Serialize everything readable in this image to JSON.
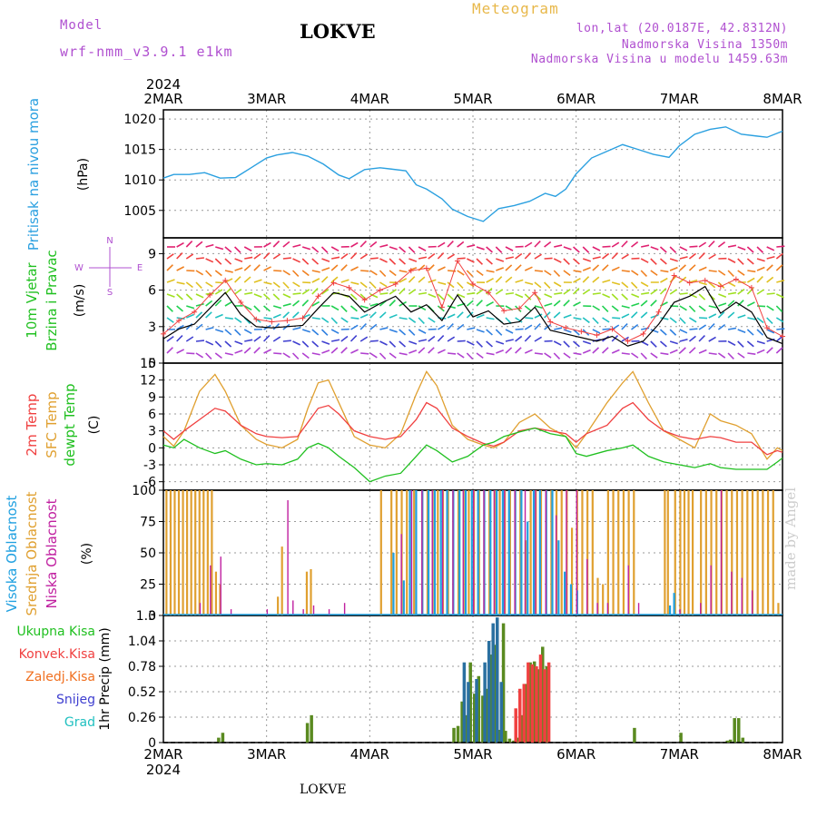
{
  "header": {
    "model_label": "Model",
    "model_name": "wrf-nmm_v3.9.1  e1km",
    "title": "LOKVE",
    "meteogram_label": "Meteogram",
    "lonlat": "lon,lat (20.0187E, 42.8312N)",
    "altitude": "Nadmorska Visina 1350m",
    "model_altitude": "Nadmorska Visina u modelu 1459.63m"
  },
  "footer": {
    "station": "LOKVE",
    "credit": "made by Angel"
  },
  "colors": {
    "pressure": "#2ba0e0",
    "temp2m": "#f04040",
    "sfc": "#e0a030",
    "dewpt": "#20c020",
    "high_cloud": "#20a0e0",
    "mid_cloud": "#e0a030",
    "low_cloud": "#c020a0",
    "rain": "#20c020",
    "conv": "#f04040",
    "frozen": "#f07020",
    "snow": "#4040d0",
    "hail": "#20c0c0",
    "wind_line": "#000000",
    "gust": "#f04040",
    "compass": "#b050d0"
  },
  "chart_data": [
    {
      "type": "line",
      "id": "pressure",
      "ylabel_lines": [
        "Pritisak na nivou mora"
      ],
      "unit": "(hPa)",
      "year": "2024",
      "date_ticks": [
        "2MAR",
        "3MAR",
        "4MAR",
        "5MAR",
        "6MAR",
        "7MAR",
        "8MAR"
      ],
      "ylim": [
        1000.5,
        1021.5
      ],
      "yticks": [
        1005,
        1010,
        1015,
        1020
      ],
      "x": [
        0,
        0.1,
        0.25,
        0.4,
        0.55,
        0.7,
        0.85,
        1.0,
        1.1,
        1.25,
        1.4,
        1.55,
        1.7,
        1.8,
        1.95,
        2.1,
        2.2,
        2.35,
        2.45,
        2.55,
        2.7,
        2.8,
        2.95,
        3.1,
        3.25,
        3.4,
        3.55,
        3.7,
        3.8,
        3.9,
        4.0,
        4.15,
        4.3,
        4.45,
        4.6,
        4.75,
        4.9,
        5.0,
        5.15,
        5.3,
        5.45,
        5.6,
        5.75,
        5.85,
        6.0
      ],
      "series": [
        {
          "values": [
            1010.3,
            1010.9,
            1010.9,
            1011.2,
            1010.3,
            1010.4,
            1012.0,
            1013.6,
            1014.1,
            1014.5,
            1013.9,
            1012.6,
            1010.8,
            1010.2,
            1011.7,
            1012.0,
            1011.8,
            1011.5,
            1009.2,
            1008.5,
            1006.9,
            1005.2,
            1004.0,
            1003.2,
            1005.3,
            1005.8,
            1006.5,
            1007.8,
            1007.3,
            1008.5,
            1011.0,
            1013.6,
            1014.7,
            1015.8,
            1015.0,
            1014.2,
            1013.7,
            1015.6,
            1017.5,
            1018.3,
            1018.7,
            1017.5,
            1017.2,
            1017.0,
            1018.0
          ]
        }
      ]
    },
    {
      "type": "line",
      "id": "wind",
      "ylabel_lines": [
        "10m Vjetar",
        "Brzina i Pravac"
      ],
      "unit": "(m/s)",
      "compass": {
        "n": "N",
        "s": "S",
        "w": "W",
        "e": "E"
      },
      "ylim": [
        0,
        10.3
      ],
      "yticks": [
        0,
        3,
        6,
        9
      ],
      "x": [
        0,
        0.15,
        0.3,
        0.45,
        0.6,
        0.75,
        0.9,
        1.05,
        1.2,
        1.35,
        1.5,
        1.65,
        1.8,
        1.95,
        2.1,
        2.25,
        2.4,
        2.55,
        2.7,
        2.85,
        3.0,
        3.15,
        3.3,
        3.45,
        3.6,
        3.75,
        3.9,
        4.05,
        4.2,
        4.35,
        4.5,
        4.65,
        4.8,
        4.95,
        5.1,
        5.25,
        5.4,
        5.55,
        5.7,
        5.85,
        6.0
      ],
      "series": [
        {
          "name": "speed",
          "values": [
            2.0,
            2.8,
            3.2,
            4.5,
            5.8,
            4.0,
            3.0,
            2.9,
            3.0,
            3.1,
            4.5,
            5.8,
            5.5,
            4.2,
            4.9,
            5.5,
            4.2,
            4.8,
            3.5,
            5.6,
            3.8,
            4.3,
            3.2,
            3.4,
            4.6,
            2.7,
            2.4,
            2.1,
            1.8,
            2.2,
            1.4,
            1.8,
            3.2,
            5.0,
            5.5,
            6.3,
            4.1,
            5.0,
            4.2,
            2.1,
            1.6
          ]
        },
        {
          "name": "gust",
          "values": [
            2.4,
            3.5,
            4.2,
            5.6,
            6.8,
            5.0,
            3.6,
            3.4,
            3.5,
            3.7,
            5.5,
            6.6,
            6.2,
            5.2,
            6.0,
            6.5,
            7.6,
            7.8,
            4.6,
            8.4,
            6.5,
            5.8,
            4.3,
            4.5,
            5.8,
            3.4,
            2.9,
            2.6,
            2.3,
            2.8,
            1.8,
            2.4,
            4.2,
            7.2,
            6.6,
            6.8,
            6.3,
            6.9,
            6.2,
            2.9,
            2.2
          ]
        }
      ]
    },
    {
      "type": "line",
      "id": "temperature",
      "ylabel_lines": [
        "2m Temp",
        "SFC Temp",
        "dewpt Temp"
      ],
      "unit": "(C)",
      "ylim": [
        -7.5,
        15
      ],
      "yticks": [
        -6,
        -3,
        0,
        3,
        6,
        9,
        12,
        15
      ],
      "x": [
        0,
        0.1,
        0.2,
        0.35,
        0.5,
        0.6,
        0.75,
        0.9,
        1.0,
        1.15,
        1.3,
        1.4,
        1.5,
        1.6,
        1.7,
        1.85,
        2.0,
        2.15,
        2.3,
        2.45,
        2.55,
        2.65,
        2.8,
        2.95,
        3.1,
        3.2,
        3.3,
        3.45,
        3.6,
        3.75,
        3.9,
        4.0,
        4.1,
        4.3,
        4.45,
        4.55,
        4.7,
        4.85,
        5.0,
        5.15,
        5.3,
        5.4,
        5.55,
        5.7,
        5.85,
        5.95,
        6.0
      ],
      "series": [
        {
          "name": "2m",
          "values": [
            3.0,
            1.5,
            3.0,
            5.0,
            7.0,
            6.5,
            4.0,
            2.5,
            2.0,
            1.8,
            2.0,
            4.5,
            7.0,
            7.5,
            6.0,
            3.0,
            2.0,
            1.5,
            2.0,
            5.0,
            8.0,
            7.0,
            3.5,
            2.0,
            0.8,
            0.3,
            1.0,
            3.0,
            3.5,
            3.0,
            2.5,
            1.0,
            2.5,
            4.0,
            7.0,
            8.0,
            5.0,
            3.0,
            2.0,
            1.5,
            2.0,
            1.8,
            1.0,
            1.0,
            -1.2,
            -0.5,
            -0.8
          ]
        },
        {
          "name": "sfc",
          "values": [
            2.0,
            0.3,
            3.0,
            10.0,
            13.0,
            10.0,
            4.0,
            1.5,
            0.6,
            0.0,
            1.5,
            7.0,
            11.5,
            12.0,
            8.0,
            2.0,
            0.5,
            0.0,
            2.5,
            9.5,
            13.5,
            11.0,
            4.0,
            1.5,
            0.5,
            0.0,
            1.0,
            4.5,
            6.0,
            3.5,
            2.0,
            0.0,
            2.5,
            8.0,
            11.5,
            13.5,
            8.0,
            3.0,
            1.5,
            0.0,
            6.0,
            4.8,
            4.0,
            2.5,
            -2.0,
            0.0,
            -0.5
          ]
        },
        {
          "name": "dewpt",
          "values": [
            0.5,
            0.0,
            1.5,
            0.0,
            -1.0,
            -0.5,
            -2.0,
            -3.0,
            -2.8,
            -3.0,
            -2.0,
            0.0,
            0.8,
            0.0,
            -1.5,
            -3.5,
            -6.0,
            -5.0,
            -4.5,
            -1.5,
            0.5,
            -0.5,
            -2.5,
            -1.5,
            0.5,
            1.0,
            2.0,
            2.8,
            3.5,
            2.5,
            2.0,
            -1.0,
            -1.5,
            -0.5,
            0.0,
            0.5,
            -1.5,
            -2.5,
            -3.0,
            -3.5,
            -2.8,
            -3.5,
            -3.8,
            -3.8,
            -3.8,
            -2.5,
            -1.8
          ]
        }
      ]
    },
    {
      "type": "bar",
      "id": "clouds",
      "ylabel_lines": [
        "Visoka Oblacnost",
        "Srednja Oblacnost",
        "Niska Oblacnost"
      ],
      "unit": "(%)",
      "ylim": [
        0,
        100
      ],
      "yticks": [
        0,
        25,
        50,
        75,
        100
      ],
      "series": [
        {
          "name": "mid",
          "x": [
            0.02,
            0.06,
            0.1,
            0.14,
            0.18,
            0.22,
            0.26,
            0.3,
            0.34,
            0.38,
            0.42,
            0.46,
            0.5,
            0.54,
            1.1,
            1.14,
            1.38,
            1.42,
            2.1,
            2.2,
            2.25,
            2.3,
            2.35,
            2.42,
            2.5,
            2.55,
            2.6,
            2.65,
            2.7,
            2.75,
            2.8,
            2.85,
            2.9,
            2.95,
            3.0,
            3.05,
            3.1,
            3.15,
            3.2,
            3.25,
            3.3,
            3.35,
            3.4,
            3.45,
            3.5,
            3.55,
            3.6,
            3.65,
            3.7,
            3.75,
            3.8,
            3.85,
            3.9,
            3.95,
            4.0,
            4.05,
            4.1,
            4.15,
            4.2,
            4.25,
            4.3,
            4.35,
            4.4,
            4.45,
            4.5,
            4.55,
            4.85,
            4.88,
            4.95,
            5.0,
            5.04,
            5.08,
            5.12,
            5.2,
            5.25,
            5.3,
            5.35,
            5.4,
            5.45,
            5.5,
            5.55,
            5.6,
            5.65,
            5.7,
            5.75,
            5.8,
            5.85,
            5.9,
            5.95
          ],
          "values": [
            100,
            100,
            100,
            100,
            100,
            100,
            100,
            100,
            100,
            100,
            100,
            100,
            35,
            25,
            15,
            55,
            35,
            37,
            100,
            100,
            100,
            100,
            100,
            100,
            100,
            100,
            100,
            100,
            100,
            100,
            100,
            100,
            100,
            100,
            100,
            100,
            100,
            100,
            100,
            100,
            100,
            100,
            100,
            100,
            60,
            100,
            100,
            100,
            100,
            100,
            100,
            100,
            100,
            70,
            100,
            100,
            100,
            100,
            30,
            25,
            100,
            100,
            100,
            100,
            100,
            100,
            100,
            100,
            100,
            100,
            100,
            100,
            100,
            100,
            100,
            100,
            100,
            100,
            100,
            100,
            100,
            100,
            100,
            100,
            100,
            100,
            100,
            100,
            10
          ]
        },
        {
          "name": "high",
          "x": [
            2.22,
            2.32,
            2.38,
            2.44,
            2.5,
            2.56,
            2.62,
            2.68,
            2.74,
            2.8,
            2.86,
            2.92,
            2.98,
            3.04,
            3.1,
            3.16,
            3.22,
            3.28,
            3.34,
            3.4,
            3.46,
            3.52,
            3.58,
            3.64,
            3.7,
            3.76,
            3.82,
            3.88,
            3.94,
            4.0,
            4.9,
            4.94
          ],
          "values": [
            50,
            28,
            100,
            100,
            100,
            100,
            100,
            100,
            100,
            100,
            100,
            100,
            100,
            100,
            100,
            100,
            100,
            100,
            100,
            100,
            100,
            75,
            100,
            100,
            100,
            100,
            60,
            35,
            25,
            20,
            8,
            18
          ]
        },
        {
          "name": "low",
          "x": [
            0.35,
            0.45,
            0.55,
            0.65,
            1.0,
            1.2,
            1.25,
            1.35,
            1.45,
            1.6,
            1.75,
            2.3,
            2.4,
            2.5,
            2.6,
            2.7,
            2.8,
            2.9,
            3.0,
            3.1,
            3.2,
            3.3,
            3.4,
            3.5,
            3.6,
            3.7,
            3.8,
            3.9,
            4.0,
            4.1,
            4.2,
            4.3,
            4.5,
            4.6,
            5.0,
            5.2,
            5.3,
            5.4,
            5.5,
            5.6,
            5.7
          ],
          "values": [
            10,
            40,
            47,
            5,
            5,
            92,
            12,
            5,
            8,
            5,
            10,
            65,
            100,
            100,
            100,
            100,
            100,
            100,
            100,
            100,
            100,
            100,
            100,
            100,
            100,
            100,
            80,
            100,
            100,
            45,
            10,
            10,
            40,
            10,
            5,
            10,
            40,
            100,
            35,
            30,
            20
          ]
        }
      ]
    },
    {
      "type": "bar",
      "id": "precipitation",
      "ylabel_lines": [
        "Ukupna Kisa",
        "Konvek.Kisa",
        "Zaledj.Kisa",
        "Snijeg",
        "Grad"
      ],
      "unit": "1hr Precip (mm)",
      "ylim": [
        0,
        1.3
      ],
      "yticks": [
        0,
        0.26,
        0.52,
        0.78,
        1.04,
        1.3
      ],
      "series": [
        {
          "name": "rain",
          "x": [
            0.52,
            0.56,
            1.38,
            1.42,
            2.8,
            2.84,
            2.88,
            2.92,
            2.96,
            3.0,
            3.04,
            3.08,
            3.12,
            3.16,
            3.2,
            3.24,
            3.28,
            3.3,
            3.34,
            3.38,
            3.42,
            3.46,
            3.5,
            3.54,
            3.58,
            3.62,
            3.66,
            3.7,
            4.55,
            5.0,
            5.45,
            5.48,
            5.52,
            5.56,
            5.6
          ],
          "values": [
            0.05,
            0.1,
            0.2,
            0.28,
            0.15,
            0.17,
            0.42,
            0.28,
            0.82,
            0.5,
            0.68,
            0.48,
            0.55,
            0.9,
            1.0,
            0.13,
            1.22,
            0.12,
            0.04,
            0.02,
            0.05,
            0.28,
            0.6,
            0.82,
            0.83,
            0.75,
            0.98,
            0.78,
            0.15,
            0.1,
            0.02,
            0.03,
            0.25,
            0.25,
            0.05
          ]
        },
        {
          "name": "conv",
          "x": [
            3.4,
            3.44,
            3.48,
            3.52,
            3.56,
            3.6,
            3.64,
            3.68,
            3.72
          ],
          "values": [
            0.35,
            0.55,
            0.6,
            0.82,
            0.8,
            0.78,
            0.9,
            0.75,
            0.82
          ]
        },
        {
          "name": "snow",
          "x": [
            2.9,
            2.94,
            3.02,
            3.1,
            3.14,
            3.18,
            3.22,
            3.26
          ],
          "values": [
            0.82,
            0.62,
            0.65,
            0.82,
            1.04,
            1.22,
            1.28,
            0.62
          ]
        }
      ]
    }
  ]
}
